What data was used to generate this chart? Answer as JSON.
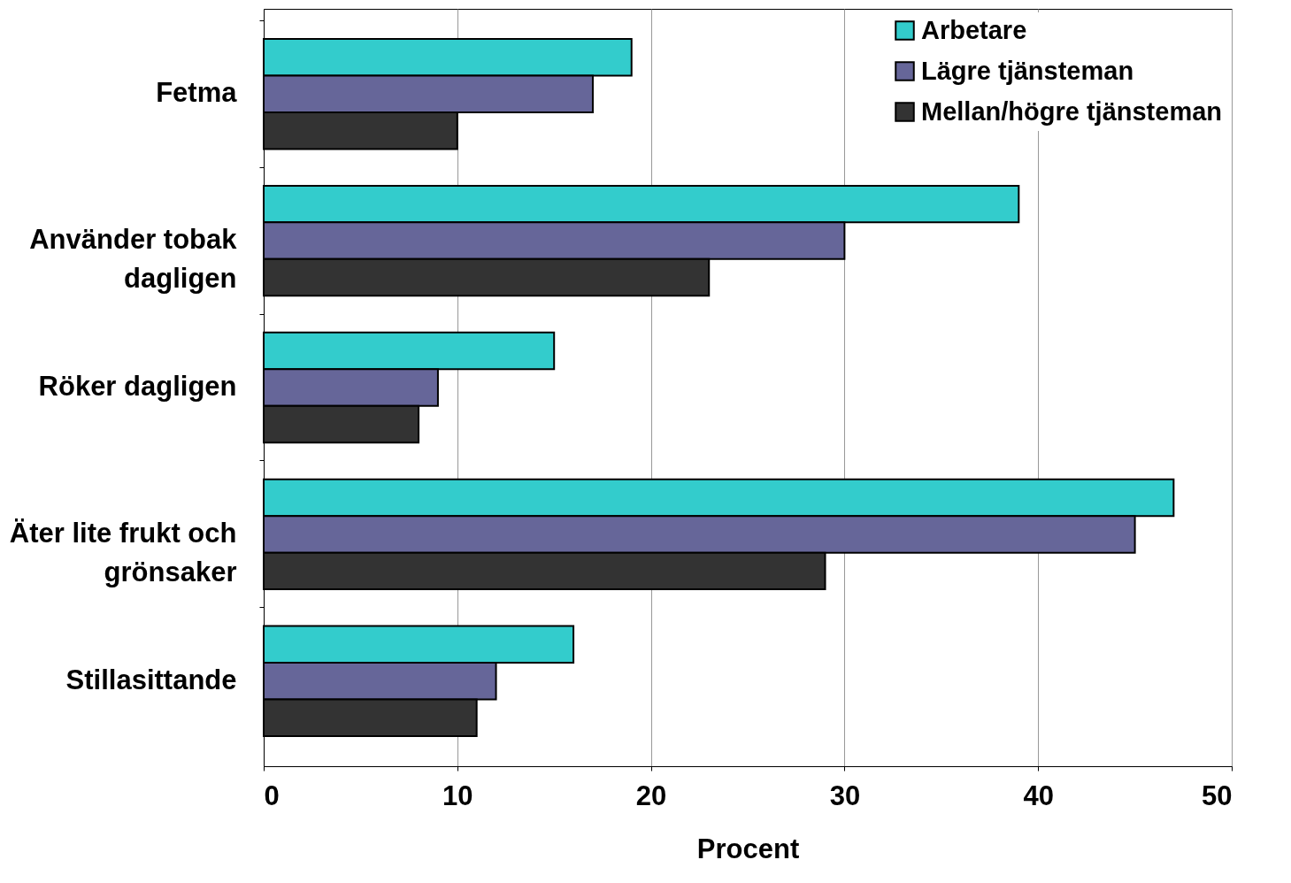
{
  "chart_data": {
    "type": "bar",
    "orientation": "horizontal",
    "xlabel": "Procent",
    "categories": [
      "Fetma",
      "Använder tobak dagligen",
      "Röker dagligen",
      "Äter lite frukt och grönsaker",
      "Stillasittande"
    ],
    "series": [
      {
        "name": "Arbetare",
        "color": "#33cccc",
        "values": [
          19,
          39,
          15,
          47,
          16
        ]
      },
      {
        "name": "Lägre tjänsteman",
        "color": "#666699",
        "values": [
          17,
          30,
          9,
          45,
          12
        ]
      },
      {
        "name": "Mellan/högre tjänsteman",
        "color": "#333333",
        "values": [
          10,
          23,
          8,
          29,
          11
        ]
      }
    ],
    "xlim": [
      0,
      50
    ],
    "xticks": [
      0,
      10,
      20,
      30,
      40,
      50
    ],
    "grid": "x",
    "legend": "top right"
  }
}
